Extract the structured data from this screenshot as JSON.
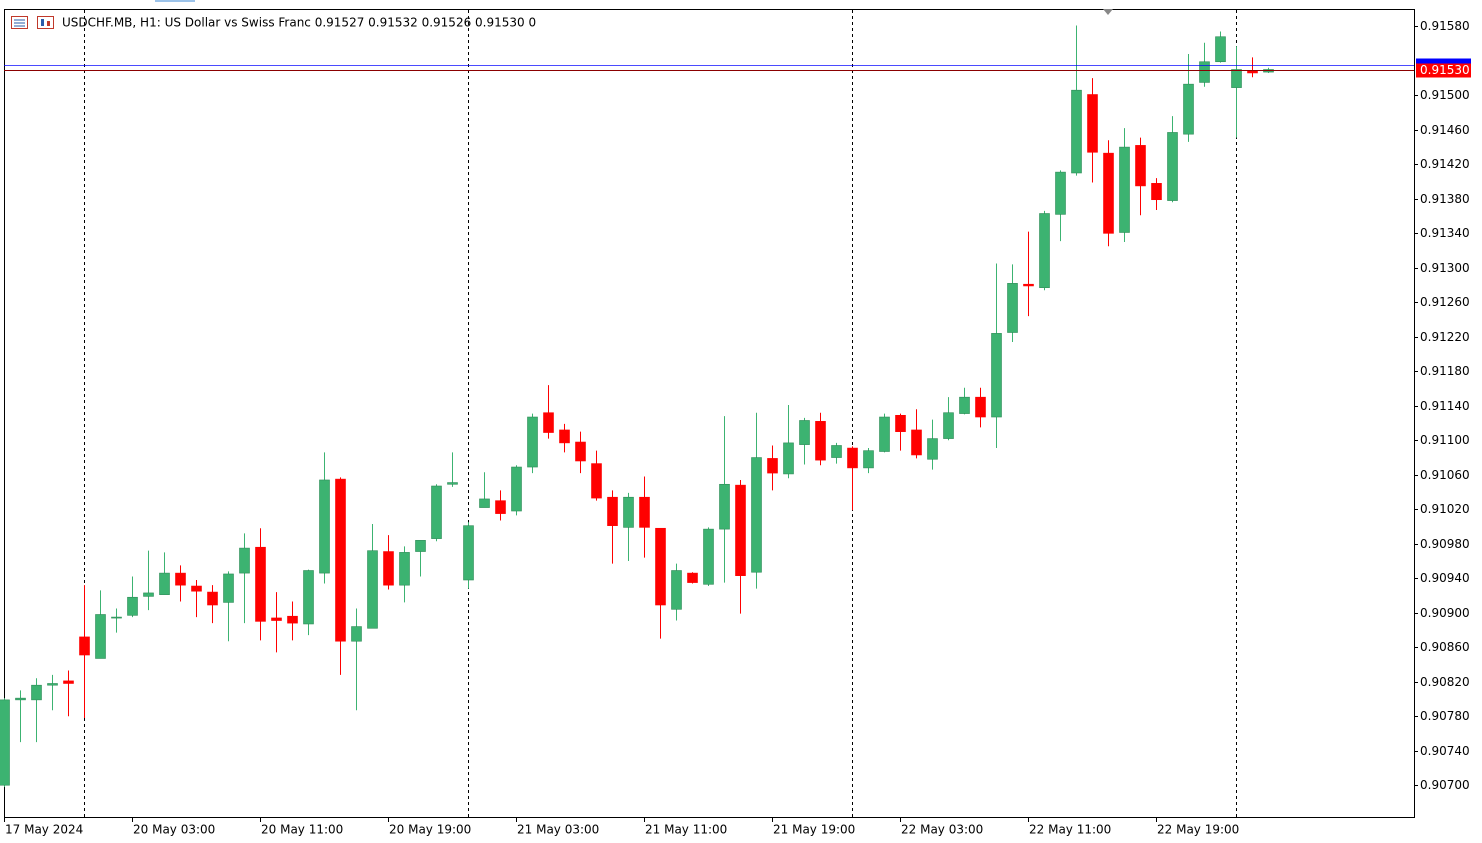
{
  "chart_data": {
    "type": "candlestick",
    "title": "USDCHF.MB, H1:  US Dollar vs Swiss Franc  0.91527 0.91532 0.91526 0.91530  0",
    "categories": [
      "17 May 2024",
      null,
      null,
      null,
      null,
      null,
      null,
      null,
      "20 May 03:00",
      null,
      null,
      null,
      null,
      null,
      null,
      null,
      "20 May 11:00",
      null,
      null,
      null,
      null,
      null,
      null,
      null,
      "20 May 19:00",
      null,
      null,
      null,
      null,
      null,
      null,
      null,
      "21 May 03:00",
      null,
      null,
      null,
      null,
      null,
      null,
      null,
      "21 May 11:00",
      null,
      null,
      null,
      null,
      null,
      null,
      null,
      "21 May 19:00",
      null,
      null,
      null,
      null,
      null,
      null,
      null,
      "22 May 03:00",
      null,
      null,
      null,
      null,
      null,
      null,
      null,
      "22 May 11:00",
      null,
      null,
      null,
      null,
      null,
      null,
      null,
      "22 May 19:00",
      null,
      null,
      null,
      null,
      null,
      null,
      null
    ],
    "open": [
      0.907,
      0.90799,
      0.90799,
      0.90816,
      0.90821,
      0.90872,
      0.90847,
      0.90895,
      0.90897,
      0.90919,
      0.90921,
      0.90946,
      0.90931,
      0.90924,
      0.90912,
      0.90946,
      0.90976,
      0.90894,
      0.90896,
      0.90887,
      0.90946,
      0.91055,
      0.90867,
      0.90882,
      0.90971,
      0.90932,
      0.90971,
      0.90986,
      0.91049,
      0.90938,
      0.91022,
      0.9103,
      0.91018,
      0.91069,
      0.91132,
      0.91112,
      0.91098,
      0.91073,
      0.91034,
      0.90999,
      0.91034,
      0.90998,
      0.90904,
      0.90946,
      0.90933,
      0.90997,
      0.91048,
      0.90947,
      0.91079,
      0.91061,
      0.91095,
      0.91122,
      0.9108,
      0.91091,
      0.91068,
      0.91087,
      0.91129,
      0.91112,
      0.91078,
      0.91102,
      0.91131,
      0.9115,
      0.91127,
      0.91225,
      0.91281,
      0.91277,
      0.91362,
      0.9141,
      0.91501,
      0.91433,
      0.91341,
      0.91442,
      0.91398,
      0.91378,
      0.91455,
      0.91515,
      0.91539,
      0.91509,
      0.91529,
      0.91527
    ],
    "high": [
      0.90801,
      0.9081,
      0.90824,
      0.90828,
      0.90833,
      0.90932,
      0.90926,
      0.90905,
      0.90942,
      0.90972,
      0.9097,
      0.90955,
      0.90938,
      0.90932,
      0.90948,
      0.90992,
      0.90998,
      0.90924,
      0.90913,
      0.9095,
      0.91086,
      0.91057,
      0.90905,
      0.91003,
      0.9099,
      0.90977,
      0.90984,
      0.91049,
      0.91086,
      0.91005,
      0.91063,
      0.91042,
      0.91071,
      0.91131,
      0.91164,
      0.91119,
      0.9111,
      0.91088,
      0.91042,
      0.91039,
      0.91058,
      0.90998,
      0.90957,
      0.90947,
      0.90999,
      0.91128,
      0.91054,
      0.91132,
      0.91094,
      0.91141,
      0.91126,
      0.91132,
      0.91097,
      0.91093,
      0.91091,
      0.91131,
      0.91131,
      0.91136,
      0.91124,
      0.9115,
      0.91161,
      0.91161,
      0.91305,
      0.91304,
      0.91342,
      0.91366,
      0.91413,
      0.91581,
      0.9152,
      0.91448,
      0.91462,
      0.91451,
      0.91404,
      0.91476,
      0.91548,
      0.91561,
      0.91574,
      0.91557,
      0.91544,
      0.91532
    ],
    "low": [
      0.90698,
      0.9075,
      0.9075,
      0.90787,
      0.9078,
      0.90778,
      0.90847,
      0.90877,
      0.90895,
      0.90903,
      0.90921,
      0.90913,
      0.90895,
      0.90888,
      0.90867,
      0.90888,
      0.90868,
      0.90854,
      0.90868,
      0.90874,
      0.90934,
      0.90828,
      0.90787,
      0.90882,
      0.90927,
      0.90912,
      0.90942,
      0.90983,
      0.91046,
      0.90928,
      0.91022,
      0.91007,
      0.91013,
      0.91062,
      0.91102,
      0.91086,
      0.91062,
      0.9103,
      0.90957,
      0.9096,
      0.90964,
      0.9087,
      0.90891,
      0.90934,
      0.90931,
      0.90935,
      0.90899,
      0.90928,
      0.91042,
      0.91056,
      0.91072,
      0.91071,
      0.91073,
      0.91019,
      0.91062,
      0.91086,
      0.91088,
      0.91079,
      0.91066,
      0.911,
      0.9113,
      0.91115,
      0.91091,
      0.91214,
      0.91244,
      0.91274,
      0.91331,
      0.91407,
      0.91399,
      0.91325,
      0.9133,
      0.91361,
      0.91367,
      0.91376,
      0.91446,
      0.9151,
      0.91538,
      0.91451,
      0.91521,
      0.91526
    ],
    "close": [
      0.90799,
      0.90801,
      0.90816,
      0.90818,
      0.90818,
      0.90851,
      0.90898,
      0.90895,
      0.90918,
      0.90923,
      0.90946,
      0.90932,
      0.90925,
      0.90909,
      0.90945,
      0.90975,
      0.9089,
      0.90891,
      0.90888,
      0.90949,
      0.91054,
      0.90867,
      0.90884,
      0.90972,
      0.90932,
      0.9097,
      0.90984,
      0.91047,
      0.91051,
      0.91001,
      0.91032,
      0.91015,
      0.91069,
      0.91127,
      0.91109,
      0.91097,
      0.91076,
      0.91033,
      0.91001,
      0.91034,
      0.90999,
      0.90909,
      0.90949,
      0.90935,
      0.90997,
      0.91049,
      0.90943,
      0.9108,
      0.91062,
      0.91097,
      0.91123,
      0.91077,
      0.91094,
      0.91068,
      0.91088,
      0.91127,
      0.9111,
      0.91083,
      0.91102,
      0.91132,
      0.9115,
      0.91127,
      0.91224,
      0.91282,
      0.91279,
      0.91363,
      0.91411,
      0.91506,
      0.91434,
      0.9134,
      0.9144,
      0.91395,
      0.91379,
      0.91457,
      0.91513,
      0.91539,
      0.91568,
      0.9153,
      0.91526,
      0.9153
    ],
    "up_color": "#3cb371",
    "down_color": "#ff0000",
    "ylim": [
      0.90662,
      0.91599
    ],
    "yticks": [
      {
        "value": 0.907,
        "label": "0.90700"
      },
      {
        "value": 0.9074,
        "label": "0.90740"
      },
      {
        "value": 0.9078,
        "label": "0.90780"
      },
      {
        "value": 0.9082,
        "label": "0.90820"
      },
      {
        "value": 0.9086,
        "label": "0.90860"
      },
      {
        "value": 0.909,
        "label": "0.90900"
      },
      {
        "value": 0.9094,
        "label": "0.90940"
      },
      {
        "value": 0.9098,
        "label": "0.90980"
      },
      {
        "value": 0.9102,
        "label": "0.91020"
      },
      {
        "value": 0.9106,
        "label": "0.91060"
      },
      {
        "value": 0.911,
        "label": "0.91100"
      },
      {
        "value": 0.9114,
        "label": "0.91140"
      },
      {
        "value": 0.9118,
        "label": "0.91180"
      },
      {
        "value": 0.9122,
        "label": "0.91220"
      },
      {
        "value": 0.9126,
        "label": "0.91260"
      },
      {
        "value": 0.913,
        "label": "0.91300"
      },
      {
        "value": 0.9134,
        "label": "0.91340"
      },
      {
        "value": 0.9138,
        "label": "0.91380"
      },
      {
        "value": 0.9142,
        "label": "0.91420"
      },
      {
        "value": 0.9146,
        "label": "0.91460"
      },
      {
        "value": 0.915,
        "label": "0.91500"
      },
      {
        "value": 0.9158,
        "label": "0.91580"
      }
    ],
    "bid": {
      "value": 0.9153,
      "label": "0.91530",
      "color": "#ff0000"
    },
    "ask": {
      "value": 0.91535,
      "color": "#0000ff"
    }
  }
}
